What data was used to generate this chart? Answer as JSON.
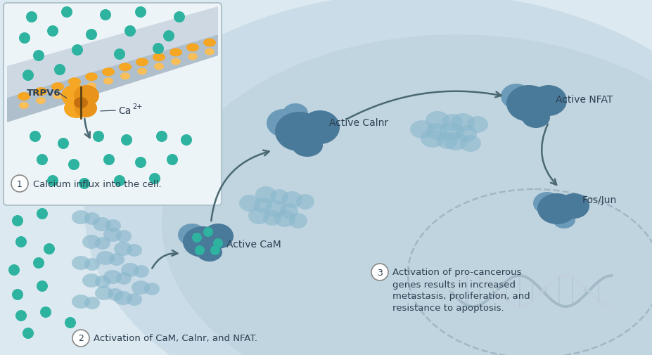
{
  "bg_outer": "#dce9f0",
  "teal_dot": "#2db3a0",
  "protein_dark": "#4a7a99",
  "protein_mid": "#6b9bb8",
  "protein_light": "#8ab8cc",
  "arrow_color": "#4a6872",
  "text_dark": "#2c3e50",
  "circle_num_bg": "#ffffff",
  "circle_num_border": "#888888",
  "orange_main": "#f5a623",
  "orange_dark": "#e8941a",
  "orange_light": "#f7be5a",
  "label1": "Calcium influx into the cell.",
  "label2": "Activation of CaM, Calnr, and NFAT.",
  "label3_line1": "Activation of pro-cancerous",
  "label3_line2": "genes results in increased",
  "label3_line3": "metastasis, proliferation, and",
  "label3_line4": "resistance to apoptosis.",
  "tag_TRPV6": "TRPV6",
  "tag_Ca": "Ca",
  "tag_Ca_super": "2+",
  "tag_ActiveCaM": "Active CaM",
  "tag_ActiveCalnr": "Active Calnr",
  "tag_ActiveNFAT": "Active NFAT",
  "tag_FosJun": "Fos/Jun",
  "dna_color": "#b0c4cc",
  "dashed_border": "#a0b8c4",
  "inset_bg": "#edf4f7",
  "inset_border": "#b0c4cc",
  "cell_bg1": "#c8dbe6",
  "cell_bg2": "#b5ccd8",
  "membrane_top": "#ccd8e0",
  "membrane_main": "#b0c0cc"
}
